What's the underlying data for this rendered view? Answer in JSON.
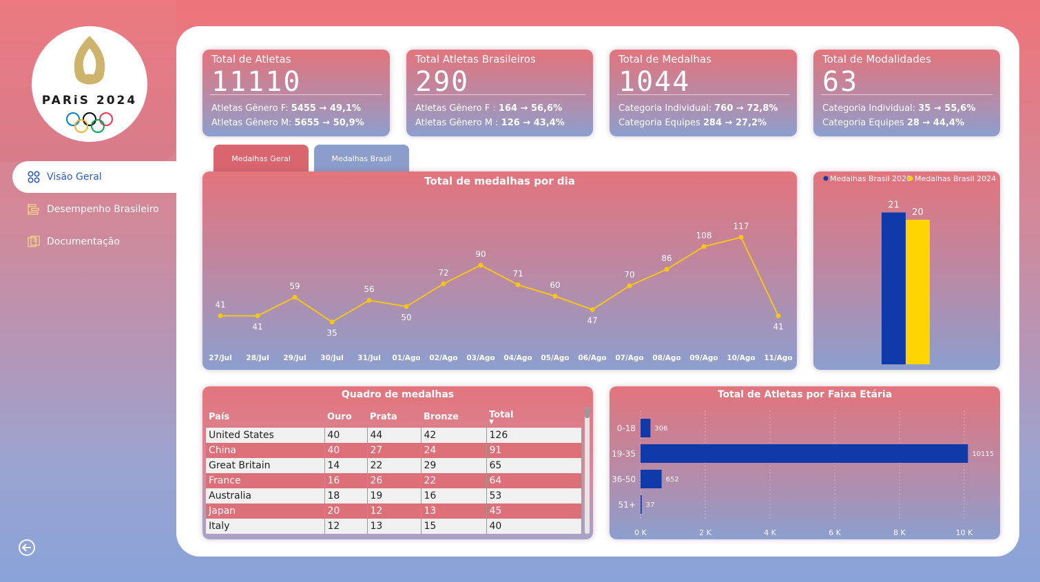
{
  "logo": {
    "text": "PARiS 2024"
  },
  "nav": {
    "items": [
      {
        "label": "Visão Geral",
        "icon": "grid-icon",
        "active": true
      },
      {
        "label": "Desempenho Brasileiro",
        "icon": "chart-icon",
        "active": false
      },
      {
        "label": "Documentação",
        "icon": "document-icon",
        "active": false
      }
    ],
    "back_icon": "back-arrow-icon"
  },
  "kpis": [
    {
      "title": "Total de Atletas",
      "value": "11110",
      "line1": {
        "prefix": "Atletas Gênero F: ",
        "bold": "5455 → 49,1%"
      },
      "line2": {
        "prefix": "Atletas Gênero M: ",
        "bold": "5655 → 50,9%"
      }
    },
    {
      "title": "Total Atletas Brasileiros",
      "value": "290",
      "line1": {
        "prefix": "Atletas Gênero F : ",
        "bold": "164 → 56,6%"
      },
      "line2": {
        "prefix": "Atletas Gênero M : ",
        "bold": "126 → 43,4%"
      }
    },
    {
      "title": "Total de Medalhas",
      "value": "1044",
      "line1": {
        "prefix": "Categoria Individual: ",
        "bold": "760 → 72,8%"
      },
      "line2": {
        "prefix": "Categoria Equipes ",
        "bold": "284 → 27,2%"
      }
    },
    {
      "title": "Total de Modalidades",
      "value": "63",
      "line1": {
        "prefix": "Categoria Individual: ",
        "bold": "35 → 55,6%"
      },
      "line2": {
        "prefix": "Categoria Equipes ",
        "bold": "28 → 44,4%"
      }
    }
  ],
  "tabs": {
    "geral": "Medalhas Geral",
    "brasil": "Medalhas Brasil"
  },
  "colors": {
    "line": "#f5c518",
    "brasil2020": "#0f3aa8",
    "brasil2024": "#ffd400",
    "bar": "#0f3aa8"
  },
  "chart_data": [
    {
      "type": "line",
      "title": "Total de medalhas por dia",
      "categories": [
        "27/Jul",
        "28/Jul",
        "29/Jul",
        "30/Jul",
        "31/Jul",
        "01/Ago",
        "02/Ago",
        "03/Ago",
        "04/Ago",
        "05/Ago",
        "06/Ago",
        "07/Ago",
        "08/Ago",
        "09/Ago",
        "10/Ago",
        "11/Ago"
      ],
      "values": [
        41,
        41,
        59,
        35,
        56,
        50,
        72,
        90,
        71,
        60,
        47,
        70,
        86,
        108,
        117,
        41
      ]
    },
    {
      "type": "bar",
      "categories": [
        ""
      ],
      "series": [
        {
          "name": "Medalhas Brasil 2020",
          "values": [
            21
          ]
        },
        {
          "name": "Medalhas Brasil 2024",
          "values": [
            20
          ]
        }
      ],
      "legend": "top"
    },
    {
      "type": "bar",
      "orientation": "horizontal",
      "title": "Total de Atletas por Faixa Etária",
      "categories": [
        "0-18",
        "19-35",
        "36-50",
        "51+"
      ],
      "values": [
        306,
        10115,
        652,
        37
      ],
      "xlim": [
        0,
        10000
      ],
      "xticks": [
        "0 K",
        "2 K",
        "4 K",
        "6 K",
        "8 K",
        "10 K"
      ]
    }
  ],
  "medal_table": {
    "title": "Quadro de medalhas",
    "headers": [
      "País",
      "Ouro",
      "Prata",
      "Bronze",
      "Total"
    ],
    "rows": [
      [
        "United States",
        "40",
        "44",
        "42",
        "126"
      ],
      [
        "China",
        "40",
        "27",
        "24",
        "91"
      ],
      [
        "Great Britain",
        "14",
        "22",
        "29",
        "65"
      ],
      [
        "France",
        "16",
        "26",
        "22",
        "64"
      ],
      [
        "Australia",
        "18",
        "19",
        "16",
        "53"
      ],
      [
        "Japan",
        "20",
        "12",
        "13",
        "45"
      ],
      [
        "Italy",
        "12",
        "13",
        "15",
        "40"
      ]
    ]
  }
}
